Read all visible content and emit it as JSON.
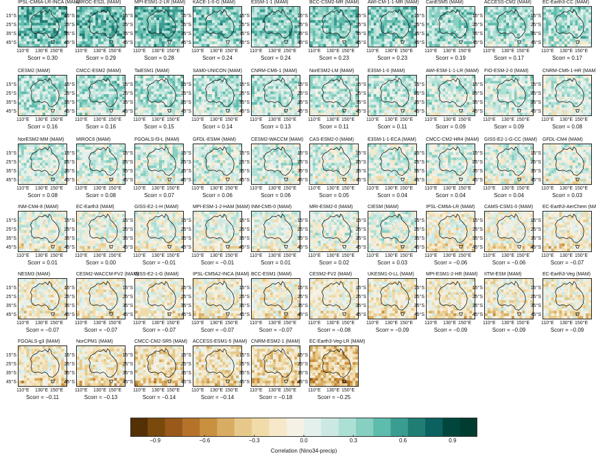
{
  "panels": [
    {
      "title": "IPSL-CM6A-LR-INCA (MAM)",
      "score": "Scorr = 0.30",
      "value": 0.3
    },
    {
      "title": "MIROC-ES2L (MAM)",
      "score": "Scorr = 0.29",
      "value": 0.29
    },
    {
      "title": "MPI-ESM1-2-LR (MAM)",
      "score": "Scorr = 0.28",
      "value": 0.28
    },
    {
      "title": "KACE-1-0-G (MAM)",
      "score": "Scorr = 0.24",
      "value": 0.24
    },
    {
      "title": "E3SM-1-1 (MAM)",
      "score": "Scorr = 0.24",
      "value": 0.24
    },
    {
      "title": "BCC-CSM2-MR (MAM)",
      "score": "Scorr = 0.23",
      "value": 0.23
    },
    {
      "title": "AWI-CM-1-1-MR (MAM)",
      "score": "Scorr = 0.23",
      "value": 0.23
    },
    {
      "title": "CanESM5 (MAM)",
      "score": "Scorr = 0.19",
      "value": 0.19
    },
    {
      "title": "ACCESS-CM2 (MAM)",
      "score": "Scorr = 0.17",
      "value": 0.17
    },
    {
      "title": "EC-Earth3-CC (MAM)",
      "score": "Scorr = 0.17",
      "value": 0.17
    },
    {
      "title": "CESM2 (MAM)",
      "score": "Scorr = 0.16",
      "value": 0.16
    },
    {
      "title": "CMCC-ESM2 (MAM)",
      "score": "Scorr = 0.16",
      "value": 0.16
    },
    {
      "title": "TaiESM1 (MAM)",
      "score": "Scorr = 0.15",
      "value": 0.15
    },
    {
      "title": "SAM0-UNICON (MAM)",
      "score": "Scorr = 0.14",
      "value": 0.14
    },
    {
      "title": "CNRM-CM6-1 (MAM)",
      "score": "Scorr = 0.13",
      "value": 0.13
    },
    {
      "title": "NorESM2-LM (MAM)",
      "score": "Scorr = 0.11",
      "value": 0.11
    },
    {
      "title": "E3SM-1-0 (MAM)",
      "score": "Scorr = 0.11",
      "value": 0.11
    },
    {
      "title": "AWI-ESM-1-1-LR (MAM)",
      "score": "Scorr = 0.09",
      "value": 0.09
    },
    {
      "title": "FIO-ESM-2-0 (MAM)",
      "score": "Scorr = 0.09",
      "value": 0.09
    },
    {
      "title": "CNRM-CM6-1-HR (MAM)",
      "score": "Scorr = 0.08",
      "value": 0.08
    },
    {
      "title": "NorESM2-MM (MAM)",
      "score": "Scorr = 0.08",
      "value": 0.08
    },
    {
      "title": "MIROC6 (MAM)",
      "score": "Scorr = 0.08",
      "value": 0.08
    },
    {
      "title": "FGOALS-f3-L (MAM)",
      "score": "Scorr = 0.07",
      "value": 0.07
    },
    {
      "title": "GFDL-ESM4 (MAM)",
      "score": "Scorr = 0.06",
      "value": 0.06
    },
    {
      "title": "CESM2-WACCM (MAM)",
      "score": "Scorr = 0.06",
      "value": 0.06
    },
    {
      "title": "CAS-ESM2-0 (MAM)",
      "score": "Scorr = 0.05",
      "value": 0.05
    },
    {
      "title": "E3SM-1-1-ECA (MAM)",
      "score": "Scorr = 0.04",
      "value": 0.04
    },
    {
      "title": "CMCC-CM2-HR4 (MAM)",
      "score": "Scorr = 0.04",
      "value": 0.04
    },
    {
      "title": "GISS-E2-1-G-CC (MAM)",
      "score": "Scorr = 0.04",
      "value": 0.04
    },
    {
      "title": "GFDL-CM4 (MAM)",
      "score": "Scorr = 0.03",
      "value": 0.03
    },
    {
      "title": "INM-CM4-8 (MAM)",
      "score": "Scorr = 0.01",
      "value": 0.01
    },
    {
      "title": "EC-Earth3 (MAM)",
      "score": "Scorr = 0.00",
      "value": 0.0
    },
    {
      "title": "GISS-E2-1-H (MAM)",
      "score": "Scorr = −0.01",
      "value": -0.01
    },
    {
      "title": "MPI-ESM-1-2-HAM (MAM)",
      "score": "Scorr = −0.01",
      "value": -0.01
    },
    {
      "title": "INM-CM5-0 (MAM)",
      "score": "Scorr = 0.01",
      "value": 0.01
    },
    {
      "title": "MRI-ESM2-0 (MAM)",
      "score": "Scorr = 0.02",
      "value": 0.02
    },
    {
      "title": "CIESM (MAM)",
      "score": "Scorr = 0.03",
      "value": 0.03
    },
    {
      "title": "IPSL-CM6A-LR (MAM)",
      "score": "Scorr = −0.06",
      "value": -0.06
    },
    {
      "title": "CAMS-CSM1-0 (MAM)",
      "score": "Scorr = −0.06",
      "value": -0.06
    },
    {
      "title": "EC-Earth3-AerChem (MAM)",
      "score": "Scorr = −0.07",
      "value": -0.07
    },
    {
      "title": "NESM3 (MAM)",
      "score": "Scorr = −0.07",
      "value": -0.07
    },
    {
      "title": "CESM2-WACCM-FV2 (MAM)",
      "score": "Scorr = −0.07",
      "value": -0.07
    },
    {
      "title": "GISS-E2-1-G (MAM)",
      "score": "Scorr = −0.07",
      "value": -0.07
    },
    {
      "title": "IPSL-CM5A2-INCA (MAM)",
      "score": "Scorr = −0.07",
      "value": -0.07
    },
    {
      "title": "BCC-ESM1 (MAM)",
      "score": "Scorr = −0.07",
      "value": -0.07
    },
    {
      "title": "CESM2-FV2 (MAM)",
      "score": "Scorr = −0.08",
      "value": -0.08
    },
    {
      "title": "UKESM1-0-LL (MAM)",
      "score": "Scorr = −0.09",
      "value": -0.09
    },
    {
      "title": "MPI-ESM1-2-HR (MAM)",
      "score": "Scorr = −0.09",
      "value": -0.09
    },
    {
      "title": "IITM-ESM (MAM)",
      "score": "Scorr = −0.09",
      "value": -0.09
    },
    {
      "title": "EC-Earth3-Veg (MAM)",
      "score": "Scorr = −0.09",
      "value": -0.09
    },
    {
      "title": "FGOALS-g3 (MAM)",
      "score": "Scorr = −0.11",
      "value": -0.11
    },
    {
      "title": "NorCPM1 (MAM)",
      "score": "Scorr = −0.13",
      "value": -0.13
    },
    {
      "title": "CMCC-CM2-SR5 (MAM)",
      "score": "Scorr = −0.14",
      "value": -0.14
    },
    {
      "title": "ACCESS-ESM1-5 (MAM)",
      "score": "Scorr = −0.14",
      "value": -0.14
    },
    {
      "title": "CNRM-ESM2-1 (MAM)",
      "score": "Scorr = −0.18",
      "value": -0.18
    },
    {
      "title": "EC-Earth3-Veg-LR (MAM)",
      "score": "Scorr = −0.25",
      "value": -0.25
    }
  ],
  "lat_labels": [
    "15°S",
    "25°S",
    "35°S",
    "45°S"
  ],
  "lon_labels": [
    "110°E",
    "130°E",
    "150°E"
  ],
  "colorbar": {
    "label": "Correlation (Nino34-precip)",
    "ticks": [
      "−0.9",
      "−0.6",
      "−0.3",
      "0.0",
      "0.3",
      "0.6",
      "0.9"
    ],
    "tick_values": [
      -0.9,
      -0.6,
      -0.3,
      0.0,
      0.3,
      0.6,
      0.9
    ],
    "range": [
      -1.05,
      1.05
    ],
    "colors": [
      "#543005",
      "#7a4a0c",
      "#98591a",
      "#b5732a",
      "#c8903f",
      "#d8ac62",
      "#e6c98a",
      "#f0dba9",
      "#f6e8c8",
      "#f5f1e4",
      "#e3f0ec",
      "#cce8e2",
      "#ade0d5",
      "#86cfc1",
      "#5ebcad",
      "#3a9d92",
      "#1f7d74",
      "#0b6160",
      "#01463d",
      "#003c30"
    ]
  },
  "chart_data": {
    "type": "heatmap",
    "xlabel": "",
    "ylabel": "",
    "colorbar_label": "Correlation (Nino34-precip)",
    "colorbar_range": [
      -1.05,
      1.05
    ],
    "season": "MAM",
    "models": [
      "IPSL-CM6A-LR-INCA",
      "MIROC-ES2L",
      "MPI-ESM1-2-LR",
      "KACE-1-0-G",
      "E3SM-1-1",
      "BCC-CSM2-MR",
      "AWI-CM-1-1-MR",
      "CanESM5",
      "ACCESS-CM2",
      "EC-Earth3-CC",
      "CESM2",
      "CMCC-ESM2",
      "TaiESM1",
      "SAM0-UNICON",
      "CNRM-CM6-1",
      "NorESM2-LM",
      "E3SM-1-0",
      "AWI-ESM-1-1-LR",
      "FIO-ESM-2-0",
      "CNRM-CM6-1-HR",
      "NorESM2-MM",
      "MIROC6",
      "FGOALS-f3-L",
      "GFDL-ESM4",
      "CESM2-WACCM",
      "CAS-ESM2-0",
      "E3SM-1-1-ECA",
      "CMCC-CM2-HR4",
      "GISS-E2-1-G-CC",
      "GFDL-CM4",
      "INM-CM4-8",
      "EC-Earth3",
      "GISS-E2-1-H",
      "MPI-ESM-1-2-HAM",
      "INM-CM5-0",
      "MRI-ESM2-0",
      "CIESM",
      "IPSL-CM6A-LR",
      "CAMS-CSM1-0",
      "EC-Earth3-AerChem",
      "NESM3",
      "CESM2-WACCM-FV2",
      "GISS-E2-1-G",
      "IPSL-CM5A2-INCA",
      "BCC-ESM1",
      "CESM2-FV2",
      "UKESM1-0-LL",
      "MPI-ESM1-2-HR",
      "IITM-ESM",
      "EC-Earth3-Veg",
      "FGOALS-g3",
      "NorCPM1",
      "CMCC-CM2-SR5",
      "ACCESS-ESM1-5",
      "CNRM-ESM2-1",
      "EC-Earth3-Veg-LR"
    ],
    "scorr": [
      0.3,
      0.29,
      0.28,
      0.24,
      0.24,
      0.23,
      0.23,
      0.19,
      0.17,
      0.17,
      0.16,
      0.16,
      0.15,
      0.14,
      0.13,
      0.11,
      0.11,
      0.09,
      0.09,
      0.08,
      0.08,
      0.08,
      0.07,
      0.06,
      0.06,
      0.05,
      0.04,
      0.04,
      0.04,
      0.03,
      0.01,
      0.0,
      -0.01,
      -0.01,
      0.01,
      0.02,
      0.03,
      -0.06,
      -0.06,
      -0.07,
      -0.07,
      -0.07,
      -0.07,
      -0.07,
      -0.07,
      -0.08,
      -0.09,
      -0.09,
      -0.09,
      -0.09,
      -0.11,
      -0.13,
      -0.14,
      -0.14,
      -0.18,
      -0.25
    ],
    "lat_ticks": [
      "15°S",
      "25°S",
      "35°S",
      "45°S"
    ],
    "lon_ticks": [
      "110°E",
      "130°E",
      "150°E"
    ]
  }
}
